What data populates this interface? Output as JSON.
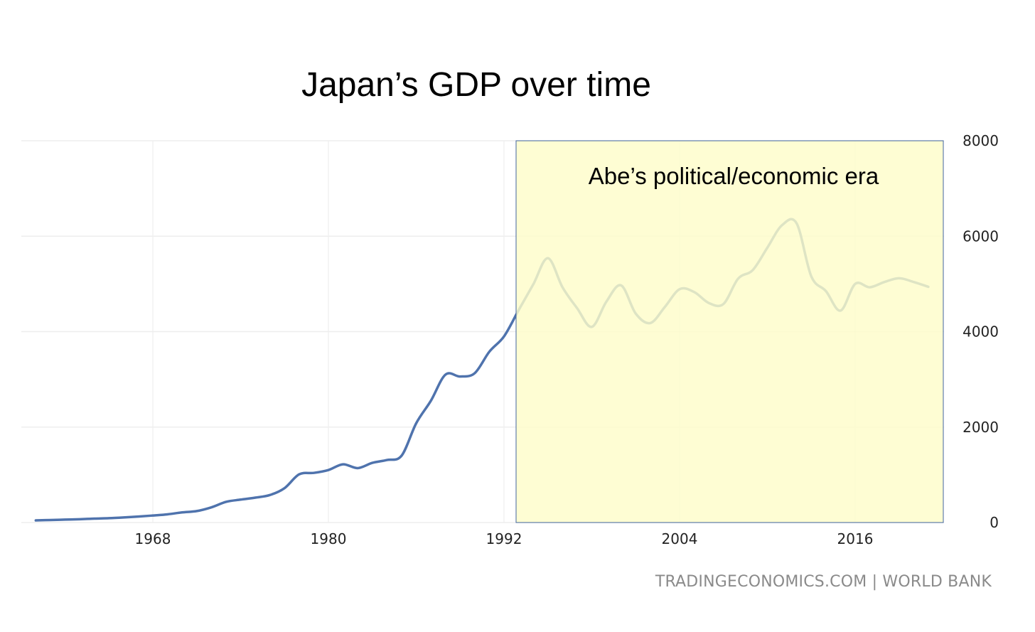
{
  "title": "Japan’s GDP over time",
  "source": "TRADINGECONOMICS.COM  |  WORLD BANK",
  "colors": {
    "line": "#4f73ad",
    "grid": "#eeeeee",
    "highlight_fill": "#fefdc9",
    "highlight_border": "#43659f"
  },
  "chart_data": {
    "type": "line",
    "title": "Japan’s GDP over time",
    "xlabel": "",
    "ylabel": "",
    "xlim": [
      1960,
      2021
    ],
    "ylim": [
      0,
      8000
    ],
    "yticks": [
      0,
      2000,
      4000,
      6000,
      8000
    ],
    "xticks": [
      1968,
      1980,
      1992,
      2004,
      2016
    ],
    "grid": true,
    "y_axis_side": "right",
    "series": [
      {
        "x": [
          1960,
          1961,
          1962,
          1963,
          1964,
          1965,
          1966,
          1967,
          1968,
          1969,
          1970,
          1971,
          1972,
          1973,
          1974,
          1975,
          1976,
          1977,
          1978,
          1979,
          1980,
          1981,
          1982,
          1983,
          1984,
          1985,
          1986,
          1987,
          1988,
          1989,
          1990,
          1991,
          1992,
          1993,
          1994,
          1995,
          1996,
          1997,
          1998,
          1999,
          2000,
          2001,
          2002,
          2003,
          2004,
          2005,
          2006,
          2007,
          2008,
          2009,
          2010,
          2011,
          2012,
          2013,
          2014,
          2015,
          2016,
          2017,
          2018,
          2019,
          2020,
          2021
        ],
        "values": [
          44,
          53,
          61,
          69,
          82,
          91,
          106,
          124,
          147,
          172,
          212,
          240,
          318,
          433,
          480,
          521,
          576,
          720,
          1010,
          1040,
          1100,
          1220,
          1140,
          1250,
          1310,
          1400,
          2080,
          2550,
          3100,
          3060,
          3130,
          3580,
          3900,
          4450,
          4990,
          5540,
          4930,
          4490,
          4100,
          4630,
          4970,
          4380,
          4180,
          4520,
          4890,
          4830,
          4600,
          4580,
          5110,
          5290,
          5760,
          6230,
          6270,
          5160,
          4850,
          4440,
          5000,
          4930,
          5040,
          5120,
          5040,
          4940
        ]
      }
    ],
    "annotations": [
      {
        "text": "Abe’s political/economic era",
        "x_start": 1992.6,
        "x_end": 2021.8,
        "y_start": 0,
        "y_end": 8000
      }
    ]
  }
}
